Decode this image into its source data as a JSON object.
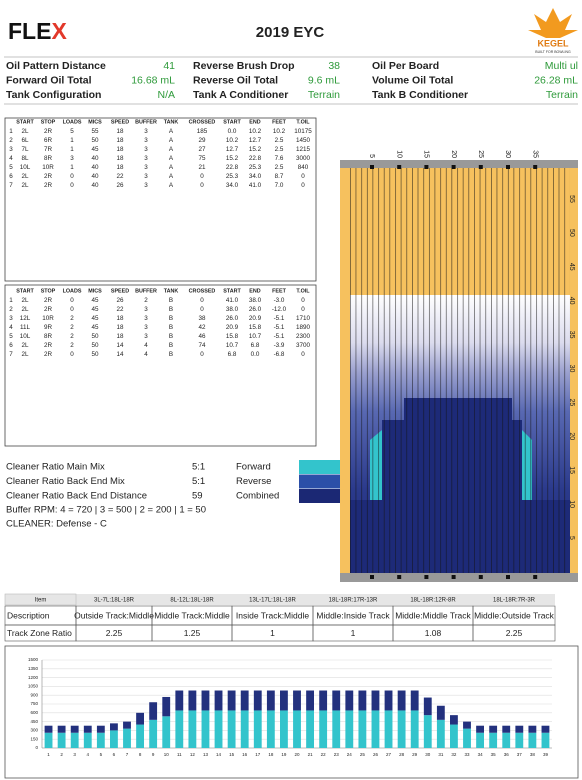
{
  "header": {
    "logo": "FLE",
    "logo_accent": "X",
    "title": "2019 EYC",
    "brand": "KEGEL",
    "tagline": "BUILT FOR BOWLING"
  },
  "info": [
    [
      {
        "label": "Oil Pattern Distance",
        "value": "41"
      },
      {
        "label": "Reverse Brush Drop",
        "value": "38"
      },
      {
        "label": "Oil Per Board",
        "value": "Multi ul"
      }
    ],
    [
      {
        "label": "Forward Oil Total",
        "value": "16.68 mL"
      },
      {
        "label": "Reverse Oil Total",
        "value": "9.6 mL"
      },
      {
        "label": "Volume Oil Total",
        "value": "26.28 mL"
      }
    ],
    [
      {
        "label": "Tank Configuration",
        "value": "N/A"
      },
      {
        "label": "Tank A Conditioner",
        "value": "Terrain"
      },
      {
        "label": "Tank B Conditioner",
        "value": "Terrain"
      }
    ]
  ],
  "forward_table": {
    "headers": [
      "START",
      "STOP",
      "LOADS",
      "MICS",
      "SPEED",
      "BUFFER",
      "TANK",
      "CROSSED",
      "START",
      "END",
      "FEET",
      "T.OIL"
    ],
    "rows": [
      [
        "1",
        "2L",
        "2R",
        "5",
        "55",
        "18",
        "3",
        "A",
        "185",
        "0.0",
        "10.2",
        "10.2",
        "10175"
      ],
      [
        "2",
        "6L",
        "6R",
        "1",
        "50",
        "18",
        "3",
        "A",
        "29",
        "10.2",
        "12.7",
        "2.5",
        "1450"
      ],
      [
        "3",
        "7L",
        "7R",
        "1",
        "45",
        "18",
        "3",
        "A",
        "27",
        "12.7",
        "15.2",
        "2.5",
        "1215"
      ],
      [
        "4",
        "8L",
        "8R",
        "3",
        "40",
        "18",
        "3",
        "A",
        "75",
        "15.2",
        "22.8",
        "7.6",
        "3000"
      ],
      [
        "5",
        "10L",
        "10R",
        "1",
        "40",
        "18",
        "3",
        "A",
        "21",
        "22.8",
        "25.3",
        "2.5",
        "840"
      ],
      [
        "6",
        "2L",
        "2R",
        "0",
        "40",
        "22",
        "3",
        "A",
        "0",
        "25.3",
        "34.0",
        "8.7",
        "0"
      ],
      [
        "7",
        "2L",
        "2R",
        "0",
        "40",
        "26",
        "3",
        "A",
        "0",
        "34.0",
        "41.0",
        "7.0",
        "0"
      ]
    ]
  },
  "reverse_table": {
    "headers": [
      "START",
      "STOP",
      "LOADS",
      "MICS",
      "SPEED",
      "BUFFER",
      "TANK",
      "CROSSED",
      "START",
      "END",
      "FEET",
      "T.OIL"
    ],
    "rows": [
      [
        "1",
        "2L",
        "2R",
        "0",
        "45",
        "26",
        "2",
        "B",
        "0",
        "41.0",
        "38.0",
        "-3.0",
        "0"
      ],
      [
        "2",
        "2L",
        "2R",
        "0",
        "45",
        "22",
        "3",
        "B",
        "0",
        "38.0",
        "26.0",
        "-12.0",
        "0"
      ],
      [
        "3",
        "12L",
        "10R",
        "2",
        "45",
        "18",
        "3",
        "B",
        "38",
        "26.0",
        "20.9",
        "-5.1",
        "1710"
      ],
      [
        "4",
        "11L",
        "9R",
        "2",
        "45",
        "18",
        "3",
        "B",
        "42",
        "20.9",
        "15.8",
        "-5.1",
        "1890"
      ],
      [
        "5",
        "10L",
        "8R",
        "2",
        "50",
        "18",
        "3",
        "B",
        "46",
        "15.8",
        "10.7",
        "-5.1",
        "2300"
      ],
      [
        "6",
        "2L",
        "2R",
        "2",
        "50",
        "14",
        "4",
        "B",
        "74",
        "10.7",
        "6.8",
        "-3.9",
        "3700"
      ],
      [
        "7",
        "2L",
        "2R",
        "0",
        "50",
        "14",
        "4",
        "B",
        "0",
        "6.8",
        "0.0",
        "-6.8",
        "0"
      ]
    ]
  },
  "lane": {
    "top_labels": [
      "5",
      "10",
      "15",
      "20",
      "25",
      "30",
      "35"
    ],
    "right_labels": [
      "55",
      "50",
      "45",
      "40",
      "35",
      "30",
      "25",
      "20",
      "15",
      "10",
      "5"
    ]
  },
  "cleaner": {
    "lines": [
      {
        "label": "Cleaner Ratio Main Mix",
        "value": "5:1"
      },
      {
        "label": "Cleaner Ratio Back End Mix",
        "value": "5:1"
      },
      {
        "label": "Cleaner Ratio Back End Distance",
        "value": "59"
      }
    ],
    "buffer_rpm": "Buffer RPM: 4 = 720 | 3 = 500 | 2 = 200 | 1 = 50",
    "cleaner": "CLEANER:  Defense - C",
    "legend": [
      {
        "name": "Forward",
        "color": "#33c4cc"
      },
      {
        "name": "Reverse",
        "color": "#2b4fa8"
      },
      {
        "name": "Combined",
        "color": "#1b2874"
      }
    ]
  },
  "zone_table": {
    "rows": [
      [
        "Item",
        "3L-7L:18L-18R",
        "8L-12L:18L-18R",
        "13L-17L:18L-18R",
        "18L-18R:17R-13R",
        "18L-18R:12R-8R",
        "18L-18R:7R-3R"
      ],
      [
        "Description",
        "Outside Track:Middle",
        "Middle Track:Middle",
        "Inside Track:Middle",
        "Middle:Inside Track",
        "Middle:Middle Track",
        "Middle:Outside Track"
      ],
      [
        "Track Zone Ratio",
        "2.25",
        "1.25",
        "1",
        "1",
        "1.08",
        "2.25"
      ]
    ]
  },
  "chart_data": {
    "type": "bar",
    "stacked": true,
    "categories": [
      "1",
      "2",
      "3",
      "4",
      "5",
      "6",
      "7",
      "8",
      "9",
      "10",
      "11",
      "12",
      "13",
      "14",
      "15",
      "16",
      "17",
      "18",
      "19",
      "20",
      "21",
      "22",
      "23",
      "24",
      "25",
      "26",
      "27",
      "28",
      "29",
      "30",
      "31",
      "32",
      "33",
      "34",
      "35",
      "36",
      "37",
      "38",
      "39"
    ],
    "series": [
      {
        "color": "#33c4cc",
        "values": [
          260,
          260,
          260,
          260,
          260,
          300,
          330,
          400,
          480,
          540,
          640,
          640,
          640,
          640,
          640,
          640,
          640,
          640,
          640,
          640,
          640,
          640,
          640,
          640,
          640,
          640,
          640,
          640,
          640,
          560,
          480,
          400,
          330,
          260,
          260,
          260,
          260,
          260,
          260
        ]
      },
      {
        "color": "#23317e",
        "values": [
          120,
          120,
          120,
          120,
          120,
          120,
          120,
          200,
          300,
          330,
          340,
          340,
          340,
          340,
          340,
          340,
          340,
          340,
          340,
          340,
          340,
          340,
          340,
          340,
          340,
          340,
          340,
          340,
          340,
          300,
          240,
          160,
          120,
          120,
          120,
          120,
          120,
          120,
          120
        ]
      }
    ],
    "ylim": [
      0,
      1500
    ],
    "yticks": [
      0,
      150,
      300,
      450,
      600,
      750,
      900,
      1050,
      1200,
      1350,
      1500
    ],
    "grid": true
  }
}
